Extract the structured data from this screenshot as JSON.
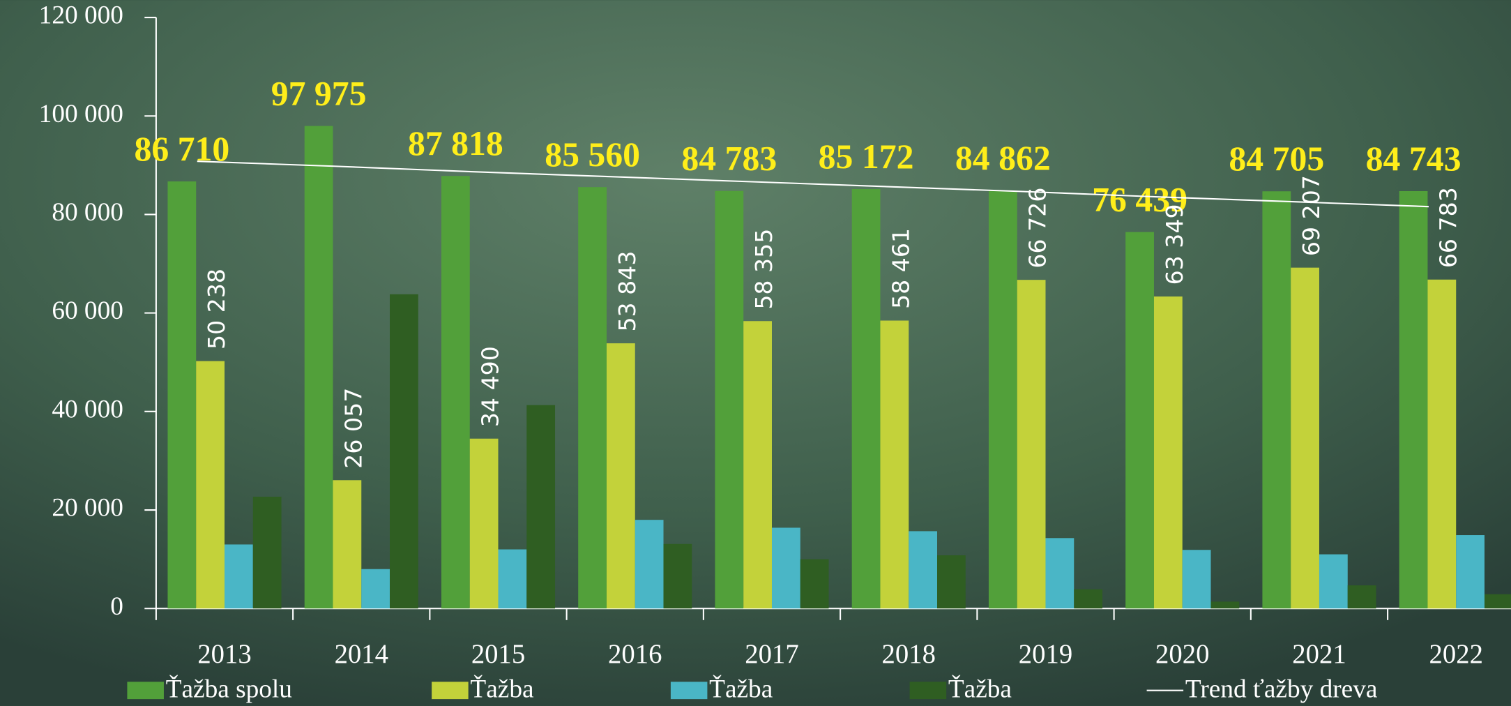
{
  "chart_data": {
    "type": "bar",
    "categories": [
      "2013",
      "2014",
      "2015",
      "2016",
      "2017",
      "2018",
      "2019",
      "2020",
      "2021",
      "2022"
    ],
    "series": [
      {
        "name": "Ťažba spolu",
        "color": "#52a03a",
        "values": [
          86710,
          97975,
          87818,
          85560,
          84783,
          85172,
          84862,
          76439,
          84705,
          84743
        ],
        "value_labels": [
          "86 710",
          "97 975",
          "87 818",
          "85 560",
          "84 783",
          "85 172",
          "84 862",
          "76 439",
          "84 705",
          "84 743"
        ]
      },
      {
        "name": "Ťažba",
        "color": "#c3d23a",
        "values": [
          50238,
          26057,
          34490,
          53843,
          58355,
          58461,
          66726,
          63349,
          69207,
          66783
        ],
        "value_labels": [
          "50 238",
          "26 057",
          "34 490",
          "53 843",
          "58 355",
          "58 461",
          "66 726",
          "63 349",
          "69 207",
          "66 783"
        ]
      },
      {
        "name": "Ťažba",
        "color": "#4ab6c6",
        "values": [
          13000,
          8000,
          12000,
          18000,
          16400,
          15700,
          14300,
          11900,
          11000,
          14900
        ]
      },
      {
        "name": "Ťažba",
        "color": "#2f5e22",
        "values": [
          22700,
          63800,
          41300,
          13100,
          10000,
          10800,
          3900,
          1400,
          4700,
          2900
        ]
      },
      {
        "name": "Trend ťažby dreva",
        "type": "line",
        "color": "#ffffff",
        "values": [
          90800,
          89800,
          88700,
          87700,
          86700,
          85700,
          84700,
          83600,
          82600,
          81600
        ]
      }
    ],
    "ylim": [
      0,
      120000
    ],
    "yticks": [
      0,
      {
        "value": 20000,
        "label": "20 000"
      },
      {
        "value": 40000,
        "label": "40 000"
      },
      {
        "value": 60000,
        "label": "60 000"
      },
      {
        "value": 80000,
        "label": "80 000"
      },
      {
        "value": 100000,
        "label": "100 000"
      },
      {
        "value": 120000,
        "label": "120 000"
      }
    ],
    "legend": "bottom"
  }
}
